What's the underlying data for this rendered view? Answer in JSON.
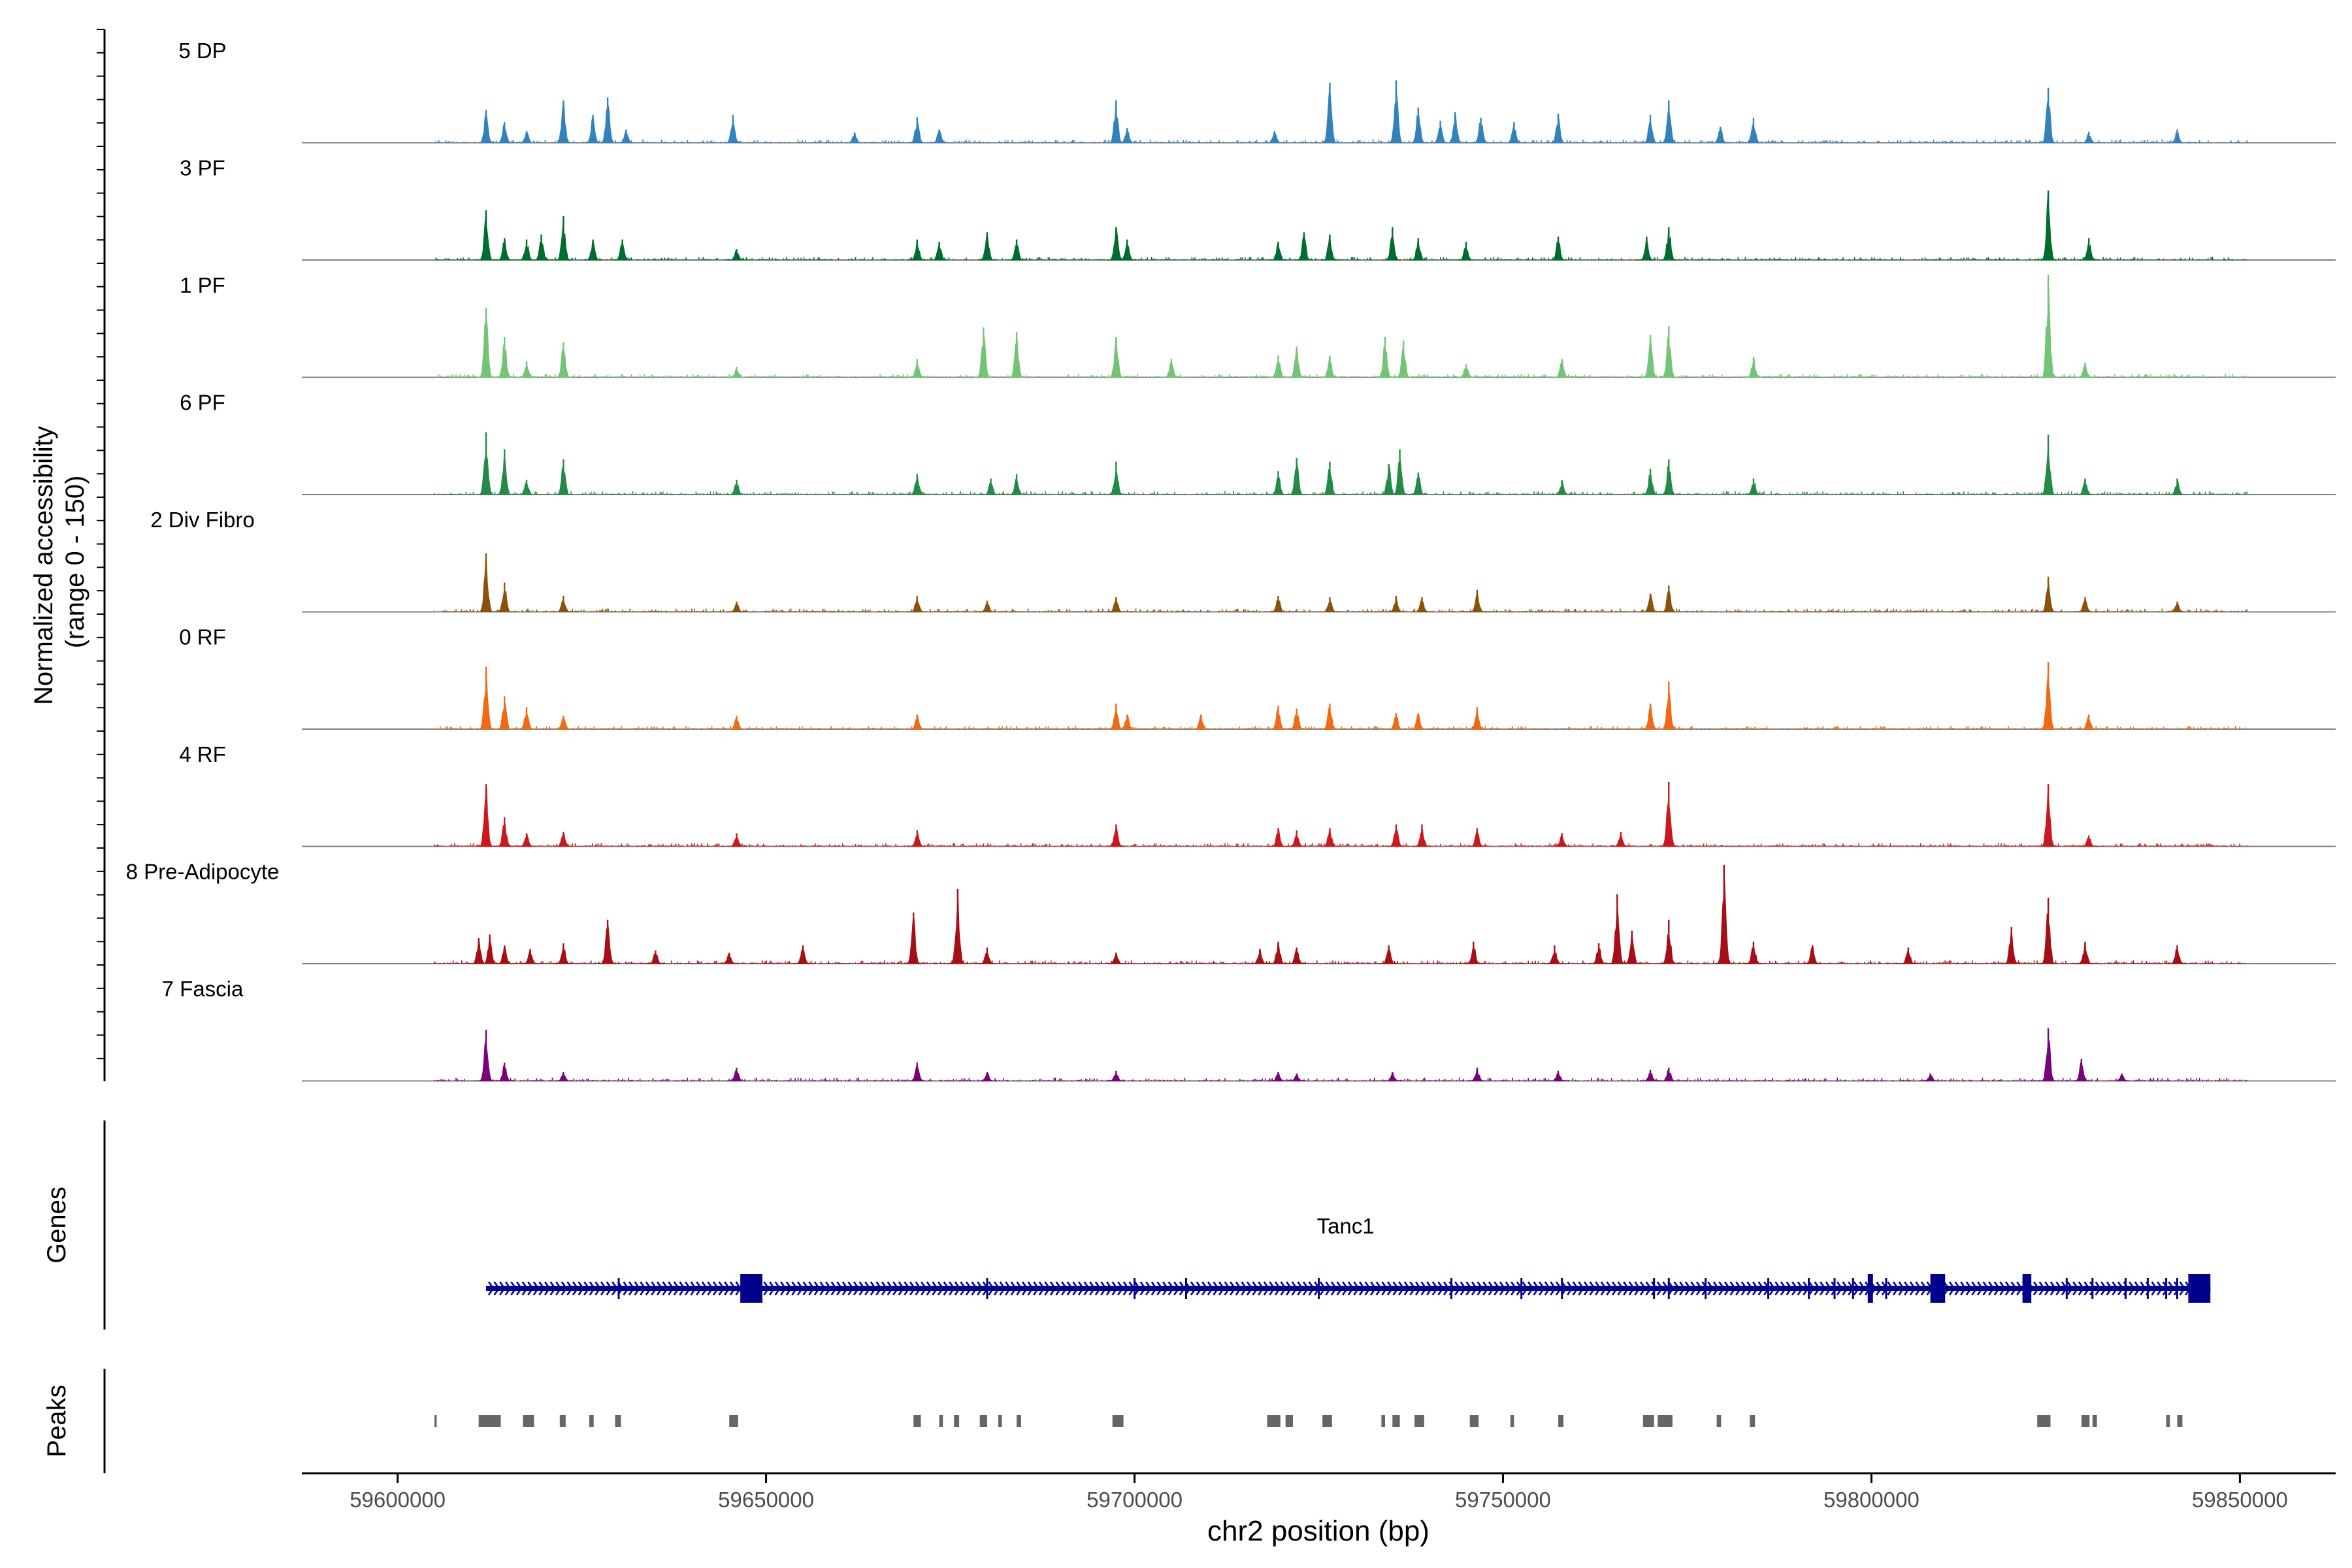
{
  "chart_data": {
    "type": "area",
    "title": "",
    "xlabel": "chr2 position (bp)",
    "ylabel": "Normalized accessibility\n(range 0 - 150)",
    "ylim": [
      0,
      150
    ],
    "xlim": [
      59587000,
      59863000
    ],
    "x_ticks": [
      59600000,
      59650000,
      59700000,
      59750000,
      59800000,
      59850000
    ],
    "x_tick_labels": [
      "59600000",
      "59650000",
      "59700000",
      "59750000",
      "59800000",
      "59850000"
    ],
    "data_range": [
      59605000,
      59851000
    ],
    "series": [
      {
        "name": "5 DP",
        "color": "#3182bd",
        "peaks": [
          [
            59612000,
            45
          ],
          [
            59614500,
            28
          ],
          [
            59617500,
            16
          ],
          [
            59622500,
            58
          ],
          [
            59626500,
            38
          ],
          [
            59628500,
            62
          ],
          [
            59631000,
            18
          ],
          [
            59645500,
            38
          ],
          [
            59662000,
            14
          ],
          [
            59670500,
            35
          ],
          [
            59673500,
            18
          ],
          [
            59697500,
            58
          ],
          [
            59699000,
            20
          ],
          [
            59719000,
            16
          ],
          [
            59726500,
            82
          ],
          [
            59735500,
            85
          ],
          [
            59738500,
            48
          ],
          [
            59741500,
            30
          ],
          [
            59743500,
            42
          ],
          [
            59747000,
            34
          ],
          [
            59751500,
            28
          ],
          [
            59757500,
            40
          ],
          [
            59770000,
            38
          ],
          [
            59772500,
            58
          ],
          [
            59779500,
            22
          ],
          [
            59784000,
            34
          ],
          [
            59824000,
            75
          ],
          [
            59829500,
            15
          ],
          [
            59841500,
            18
          ]
        ]
      },
      {
        "name": "3 PF",
        "color": "#006d2c",
        "peaks": [
          [
            59612000,
            68
          ],
          [
            59614500,
            30
          ],
          [
            59617500,
            28
          ],
          [
            59619500,
            35
          ],
          [
            59622500,
            60
          ],
          [
            59626500,
            28
          ],
          [
            59630500,
            28
          ],
          [
            59646000,
            15
          ],
          [
            59670500,
            28
          ],
          [
            59673500,
            25
          ],
          [
            59680000,
            38
          ],
          [
            59684000,
            28
          ],
          [
            59697500,
            45
          ],
          [
            59699000,
            28
          ],
          [
            59719500,
            25
          ],
          [
            59723000,
            38
          ],
          [
            59726500,
            35
          ],
          [
            59735000,
            45
          ],
          [
            59738500,
            30
          ],
          [
            59745000,
            25
          ],
          [
            59757500,
            32
          ],
          [
            59769500,
            32
          ],
          [
            59772500,
            45
          ],
          [
            59824000,
            95
          ],
          [
            59829500,
            30
          ]
        ]
      },
      {
        "name": "1 PF",
        "color": "#74c476",
        "peaks": [
          [
            59612000,
            95
          ],
          [
            59614500,
            55
          ],
          [
            59617500,
            22
          ],
          [
            59622500,
            48
          ],
          [
            59646000,
            14
          ],
          [
            59670500,
            25
          ],
          [
            59679500,
            68
          ],
          [
            59684000,
            62
          ],
          [
            59697500,
            55
          ],
          [
            59705000,
            25
          ],
          [
            59719500,
            30
          ],
          [
            59722000,
            42
          ],
          [
            59726500,
            30
          ],
          [
            59734000,
            55
          ],
          [
            59736500,
            50
          ],
          [
            59745000,
            18
          ],
          [
            59758000,
            25
          ],
          [
            59770000,
            58
          ],
          [
            59772500,
            70
          ],
          [
            59784000,
            28
          ],
          [
            59824000,
            140
          ],
          [
            59829000,
            20
          ]
        ]
      },
      {
        "name": "6 PF",
        "color": "#238b45",
        "peaks": [
          [
            59612000,
            85
          ],
          [
            59614500,
            62
          ],
          [
            59617500,
            20
          ],
          [
            59622500,
            48
          ],
          [
            59646000,
            20
          ],
          [
            59670500,
            28
          ],
          [
            59680500,
            22
          ],
          [
            59684000,
            28
          ],
          [
            59697500,
            45
          ],
          [
            59719500,
            32
          ],
          [
            59722000,
            50
          ],
          [
            59726500,
            45
          ],
          [
            59734500,
            42
          ],
          [
            59736000,
            62
          ],
          [
            59738500,
            30
          ],
          [
            59758000,
            20
          ],
          [
            59770000,
            35
          ],
          [
            59772500,
            48
          ],
          [
            59784000,
            22
          ],
          [
            59824000,
            82
          ],
          [
            59829000,
            22
          ],
          [
            59841500,
            22
          ]
        ]
      },
      {
        "name": "2 Div Fibro",
        "color": "#8c510a",
        "peaks": [
          [
            59612000,
            80
          ],
          [
            59614500,
            40
          ],
          [
            59622500,
            22
          ],
          [
            59646000,
            14
          ],
          [
            59670500,
            22
          ],
          [
            59680000,
            15
          ],
          [
            59697500,
            20
          ],
          [
            59719500,
            22
          ],
          [
            59726500,
            20
          ],
          [
            59735500,
            22
          ],
          [
            59739000,
            20
          ],
          [
            59746500,
            30
          ],
          [
            59770000,
            25
          ],
          [
            59772500,
            36
          ],
          [
            59824000,
            48
          ],
          [
            59829000,
            20
          ],
          [
            59841500,
            14
          ]
        ]
      },
      {
        "name": "0 RF",
        "color": "#f16913",
        "peaks": [
          [
            59612000,
            85
          ],
          [
            59614500,
            45
          ],
          [
            59617500,
            30
          ],
          [
            59622500,
            18
          ],
          [
            59646000,
            18
          ],
          [
            59670500,
            20
          ],
          [
            59697500,
            35
          ],
          [
            59699000,
            20
          ],
          [
            59709000,
            20
          ],
          [
            59719500,
            32
          ],
          [
            59722000,
            28
          ],
          [
            59726500,
            35
          ],
          [
            59735500,
            22
          ],
          [
            59738500,
            22
          ],
          [
            59746500,
            30
          ],
          [
            59770000,
            35
          ],
          [
            59772500,
            65
          ],
          [
            59824000,
            92
          ],
          [
            59829500,
            20
          ]
        ]
      },
      {
        "name": "4 RF",
        "color": "#cb181d",
        "peaks": [
          [
            59612000,
            85
          ],
          [
            59614500,
            40
          ],
          [
            59617500,
            18
          ],
          [
            59622500,
            20
          ],
          [
            59646000,
            18
          ],
          [
            59670500,
            22
          ],
          [
            59697500,
            30
          ],
          [
            59719500,
            25
          ],
          [
            59722000,
            22
          ],
          [
            59726500,
            25
          ],
          [
            59735500,
            30
          ],
          [
            59739000,
            30
          ],
          [
            59746500,
            25
          ],
          [
            59758000,
            18
          ],
          [
            59766000,
            20
          ],
          [
            59772500,
            88
          ],
          [
            59824000,
            85
          ],
          [
            59829500,
            15
          ]
        ]
      },
      {
        "name": "8 Pre-Adipocyte",
        "color": "#a50f15",
        "peaks": [
          [
            59611000,
            35
          ],
          [
            59612500,
            40
          ],
          [
            59614500,
            25
          ],
          [
            59618000,
            20
          ],
          [
            59622500,
            28
          ],
          [
            59628500,
            60
          ],
          [
            59635000,
            18
          ],
          [
            59645000,
            15
          ],
          [
            59655000,
            25
          ],
          [
            59670000,
            70
          ],
          [
            59676000,
            102
          ],
          [
            59680000,
            22
          ],
          [
            59697500,
            15
          ],
          [
            59717000,
            20
          ],
          [
            59719500,
            30
          ],
          [
            59722000,
            22
          ],
          [
            59734500,
            25
          ],
          [
            59746000,
            30
          ],
          [
            59757000,
            25
          ],
          [
            59763000,
            28
          ],
          [
            59765500,
            95
          ],
          [
            59767500,
            45
          ],
          [
            59772500,
            60
          ],
          [
            59780000,
            135
          ],
          [
            59784000,
            30
          ],
          [
            59792000,
            25
          ],
          [
            59805000,
            22
          ],
          [
            59819000,
            50
          ],
          [
            59824000,
            90
          ],
          [
            59829000,
            30
          ],
          [
            59841500,
            25
          ]
        ]
      },
      {
        "name": "7 Fascia",
        "color": "#7a0177",
        "peaks": [
          [
            59612000,
            70
          ],
          [
            59614500,
            25
          ],
          [
            59622500,
            12
          ],
          [
            59646000,
            18
          ],
          [
            59670500,
            25
          ],
          [
            59680000,
            12
          ],
          [
            59697500,
            14
          ],
          [
            59719500,
            12
          ],
          [
            59722000,
            10
          ],
          [
            59735000,
            12
          ],
          [
            59746500,
            18
          ],
          [
            59757500,
            14
          ],
          [
            59770000,
            15
          ],
          [
            59772500,
            18
          ],
          [
            59808000,
            10
          ],
          [
            59824000,
            72
          ],
          [
            59828500,
            30
          ],
          [
            59834000,
            10
          ]
        ]
      }
    ],
    "gene": {
      "track_label": "Genes",
      "name": "Tanc1",
      "start": 59612000,
      "end": 59846000,
      "color": "#00008b",
      "exons": [
        [
          59646500,
          59649500
        ],
        [
          59799500,
          59800200
        ],
        [
          59808000,
          59810000
        ],
        [
          59820500,
          59821700
        ],
        [
          59843000,
          59846000
        ]
      ],
      "intron_ticks": [
        59630000,
        59680000,
        59700000,
        59707000,
        59725000,
        59743000,
        59752500,
        59758000,
        59770500,
        59772500,
        59777500,
        59786000,
        59791500,
        59795000,
        59797500,
        59802000,
        59826500,
        59830000,
        59834500,
        59837500,
        59840000,
        59841500
      ]
    },
    "peaks_track": {
      "track_label": "Peaks",
      "color": "#666666",
      "regions": [
        [
          59605000,
          59605300
        ],
        [
          59611000,
          59614000
        ],
        [
          59617000,
          59618500
        ],
        [
          59622000,
          59622800
        ],
        [
          59626000,
          59626600
        ],
        [
          59629500,
          59630300
        ],
        [
          59645000,
          59646200
        ],
        [
          59670000,
          59671000
        ],
        [
          59673500,
          59674000
        ],
        [
          59675500,
          59676200
        ],
        [
          59679000,
          59680000
        ],
        [
          59681500,
          59682000
        ],
        [
          59684000,
          59684600
        ],
        [
          59697000,
          59698500
        ],
        [
          59718000,
          59719800
        ],
        [
          59720500,
          59721500
        ],
        [
          59725500,
          59726800
        ],
        [
          59733500,
          59734000
        ],
        [
          59735000,
          59736000
        ],
        [
          59738000,
          59739300
        ],
        [
          59745500,
          59746700
        ],
        [
          59751000,
          59751500
        ],
        [
          59757500,
          59758200
        ],
        [
          59769000,
          59770500
        ],
        [
          59771000,
          59773000
        ],
        [
          59779000,
          59779600
        ],
        [
          59783500,
          59784200
        ],
        [
          59822500,
          59824300
        ],
        [
          59828500,
          59829600
        ],
        [
          59830000,
          59830600
        ],
        [
          59840000,
          59840500
        ],
        [
          59841500,
          59842200
        ]
      ]
    }
  }
}
